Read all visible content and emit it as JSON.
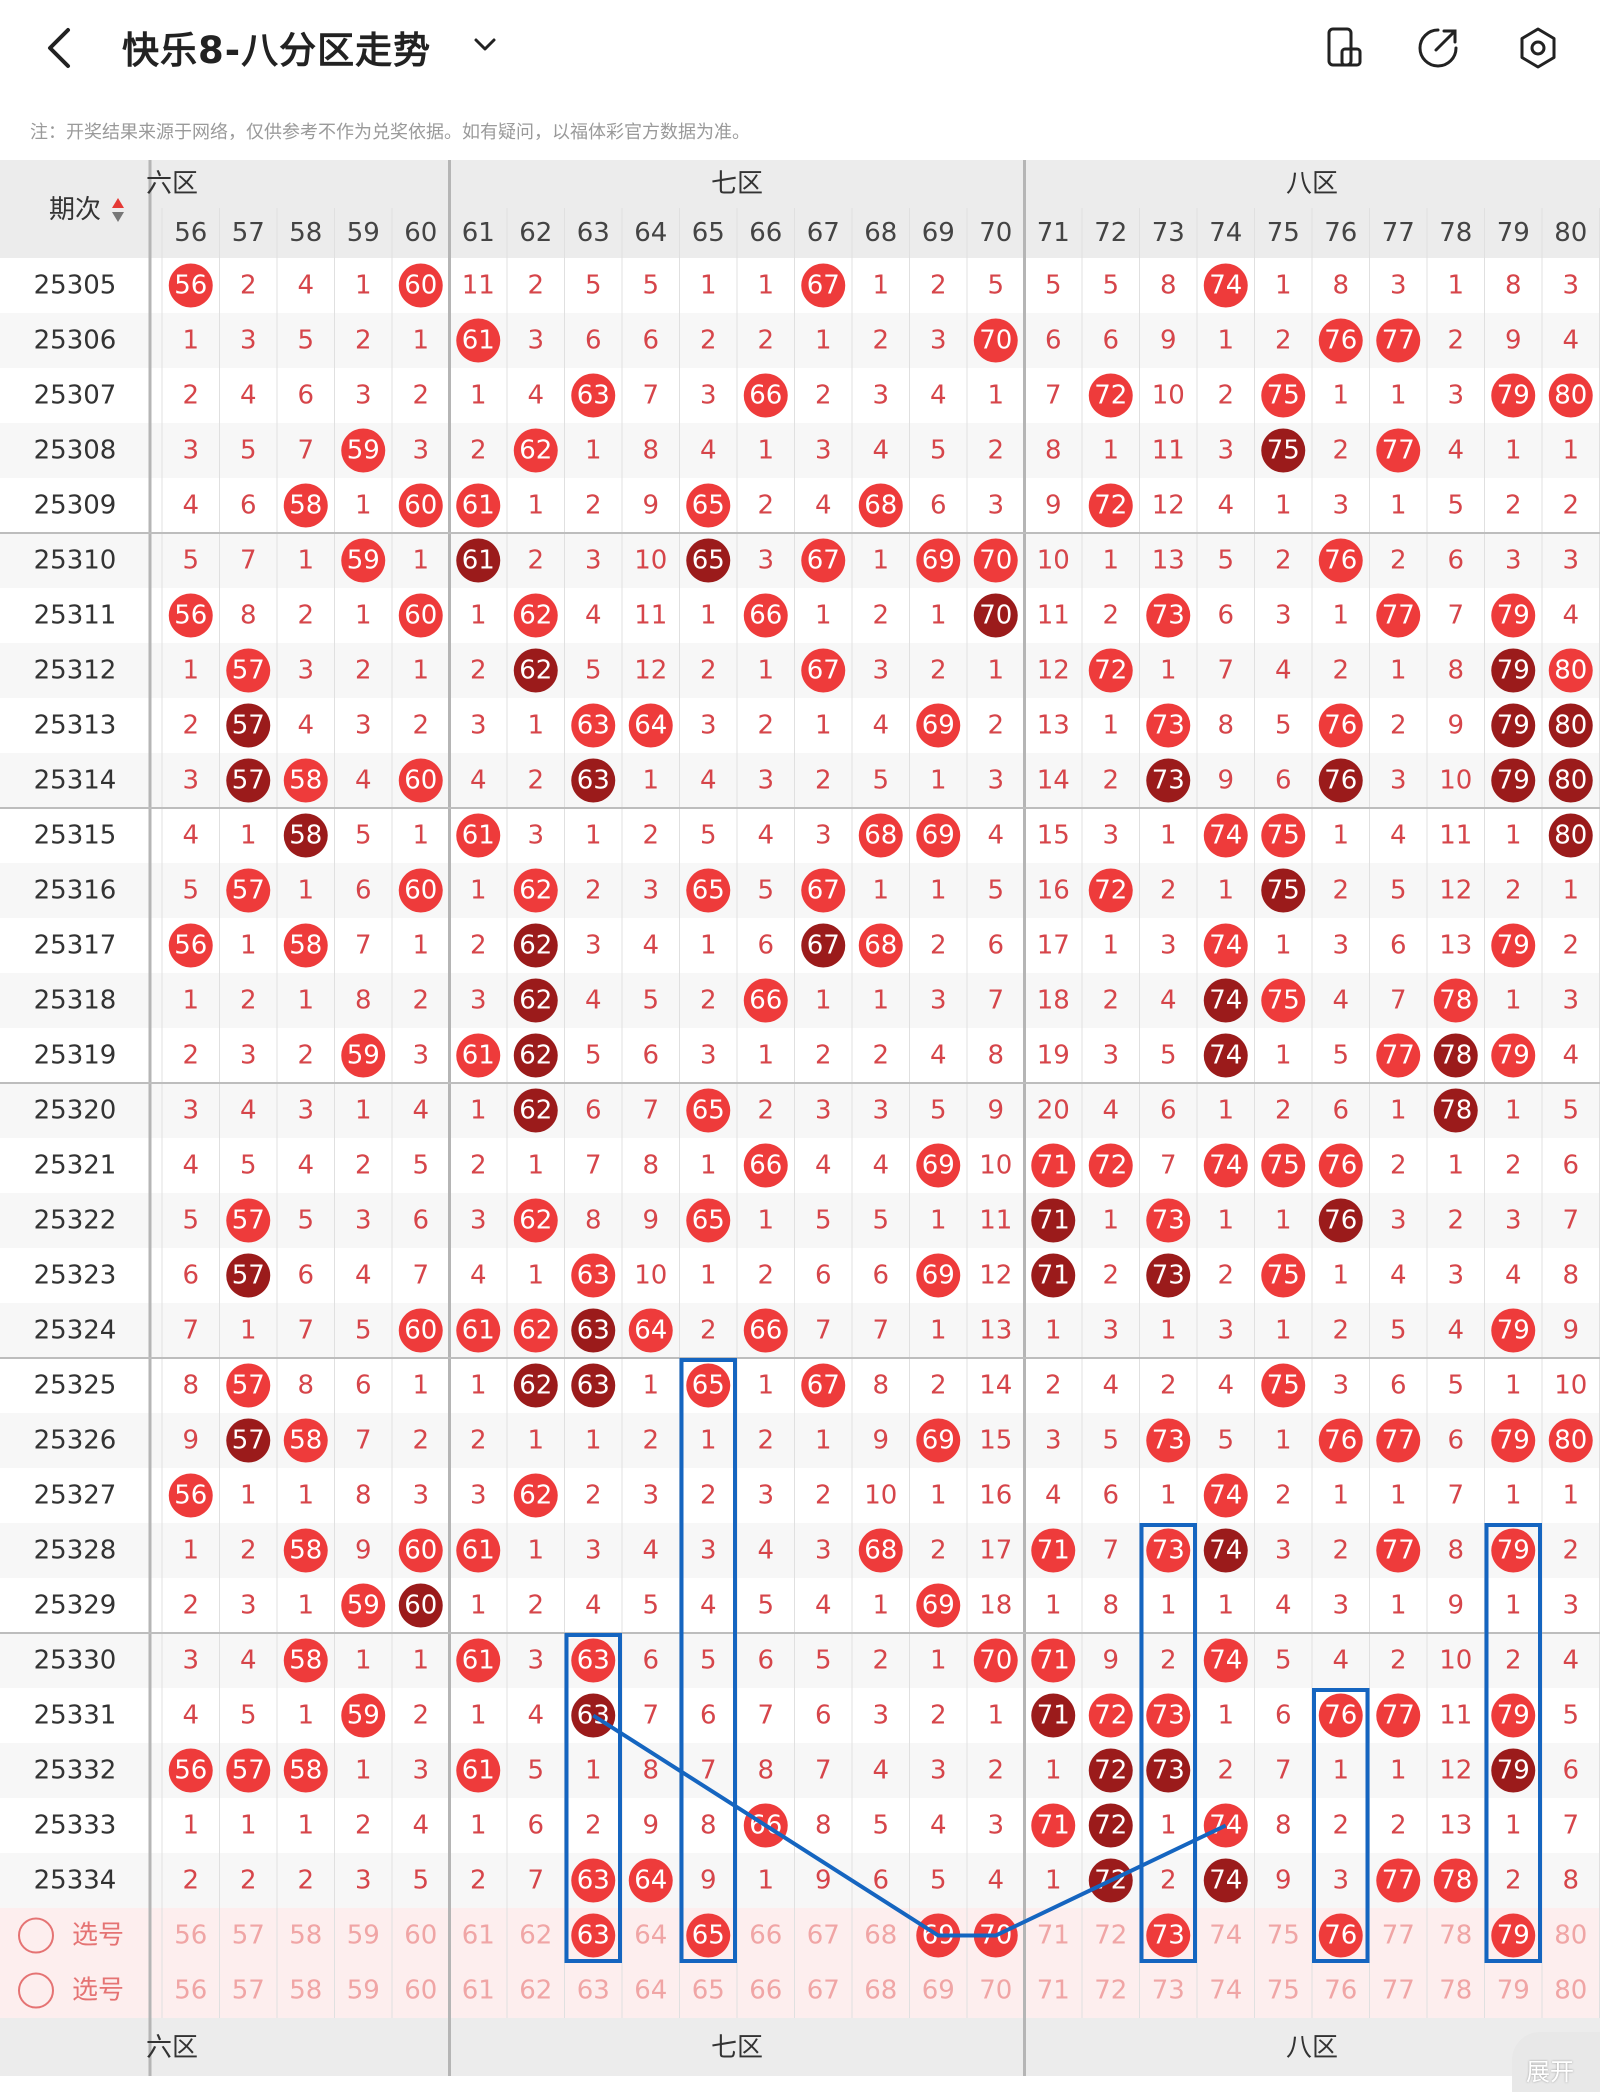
{
  "header": {
    "title": "快乐8-八分区走势",
    "back_icon": "chevron-left-icon",
    "dropdown_icon": "chevron-down-icon",
    "actions": [
      {
        "name": "layout-icon"
      },
      {
        "name": "share-icon"
      },
      {
        "name": "settings-icon"
      }
    ]
  },
  "notice": "注：开奖结果来源于网络，仅供参考不作为兑奖依据。如有疑问，以福体彩官方数据为准。",
  "table": {
    "issue_header": "期次",
    "zones": [
      {
        "label": "六区"
      },
      {
        "label": "七区"
      },
      {
        "label": "八区"
      }
    ],
    "columns": [
      56,
      57,
      58,
      59,
      60,
      61,
      62,
      63,
      64,
      65,
      66,
      67,
      68,
      69,
      70,
      71,
      72,
      73,
      74,
      75,
      76,
      77,
      78,
      79,
      80
    ],
    "rows": [
      {
        "issue": "25305",
        "cells": [
          "56",
          "2",
          "4",
          "1",
          "60",
          "11",
          "2",
          "5",
          "5",
          "1",
          "1",
          "67",
          "1",
          "2",
          "5",
          "5",
          "5",
          "8",
          "74",
          "1",
          "8",
          "3",
          "1",
          "8",
          "3"
        ]
      },
      {
        "issue": "25306",
        "cells": [
          "1",
          "3",
          "5",
          "2",
          "1",
          "61",
          "3",
          "6",
          "6",
          "2",
          "2",
          "1",
          "2",
          "3",
          "70",
          "6",
          "6",
          "9",
          "1",
          "2",
          "76",
          "77",
          "2",
          "9",
          "4"
        ]
      },
      {
        "issue": "25307",
        "cells": [
          "2",
          "4",
          "6",
          "3",
          "2",
          "1",
          "4",
          "63",
          "7",
          "3",
          "66",
          "2",
          "3",
          "4",
          "1",
          "7",
          "72",
          "10",
          "2",
          "75",
          "1",
          "1",
          "3",
          "79",
          "80"
        ]
      },
      {
        "issue": "25308",
        "cells": [
          "3",
          "5",
          "7",
          "59",
          "3",
          "2",
          "62",
          "1",
          "8",
          "4",
          "1",
          "3",
          "4",
          "5",
          "2",
          "8",
          "1",
          "11",
          "3",
          "75",
          "2",
          "77",
          "4",
          "1",
          "1"
        ]
      },
      {
        "issue": "25309",
        "cells": [
          "4",
          "6",
          "58",
          "1",
          "60",
          "61",
          "1",
          "2",
          "9",
          "65",
          "2",
          "4",
          "68",
          "6",
          "3",
          "9",
          "72",
          "12",
          "4",
          "1",
          "3",
          "1",
          "5",
          "2",
          "2"
        ]
      },
      {
        "issue": "25310",
        "cells": [
          "5",
          "7",
          "1",
          "59",
          "1",
          "61",
          "2",
          "3",
          "10",
          "65",
          "3",
          "67",
          "1",
          "69",
          "70",
          "10",
          "1",
          "13",
          "5",
          "2",
          "76",
          "2",
          "6",
          "3",
          "3"
        ]
      },
      {
        "issue": "25311",
        "cells": [
          "56",
          "8",
          "2",
          "1",
          "60",
          "1",
          "62",
          "4",
          "11",
          "1",
          "66",
          "1",
          "2",
          "1",
          "70",
          "11",
          "2",
          "73",
          "6",
          "3",
          "1",
          "77",
          "7",
          "79",
          "4"
        ]
      },
      {
        "issue": "25312",
        "cells": [
          "1",
          "57",
          "3",
          "2",
          "1",
          "2",
          "62",
          "5",
          "12",
          "2",
          "1",
          "67",
          "3",
          "2",
          "1",
          "12",
          "72",
          "1",
          "7",
          "4",
          "2",
          "1",
          "8",
          "79",
          "80"
        ]
      },
      {
        "issue": "25313",
        "cells": [
          "2",
          "57",
          "4",
          "3",
          "2",
          "3",
          "1",
          "63",
          "64",
          "3",
          "2",
          "1",
          "4",
          "69",
          "2",
          "13",
          "1",
          "73",
          "8",
          "5",
          "76",
          "2",
          "9",
          "79",
          "80"
        ]
      },
      {
        "issue": "25314",
        "cells": [
          "3",
          "57",
          "58",
          "4",
          "60",
          "4",
          "2",
          "63",
          "1",
          "4",
          "3",
          "2",
          "5",
          "1",
          "3",
          "14",
          "2",
          "73",
          "9",
          "6",
          "76",
          "3",
          "10",
          "79",
          "80"
        ]
      },
      {
        "issue": "25315",
        "cells": [
          "4",
          "1",
          "58",
          "5",
          "1",
          "61",
          "3",
          "1",
          "2",
          "5",
          "4",
          "3",
          "68",
          "69",
          "4",
          "15",
          "3",
          "1",
          "74",
          "75",
          "1",
          "4",
          "11",
          "1",
          "80"
        ]
      },
      {
        "issue": "25316",
        "cells": [
          "5",
          "57",
          "1",
          "6",
          "60",
          "1",
          "62",
          "2",
          "3",
          "65",
          "5",
          "67",
          "1",
          "1",
          "5",
          "16",
          "72",
          "2",
          "1",
          "75",
          "2",
          "5",
          "12",
          "2",
          "1"
        ]
      },
      {
        "issue": "25317",
        "cells": [
          "56",
          "1",
          "58",
          "7",
          "1",
          "2",
          "62",
          "3",
          "4",
          "1",
          "6",
          "67",
          "68",
          "2",
          "6",
          "17",
          "1",
          "3",
          "74",
          "1",
          "3",
          "6",
          "13",
          "79",
          "2"
        ]
      },
      {
        "issue": "25318",
        "cells": [
          "1",
          "2",
          "1",
          "8",
          "2",
          "3",
          "62",
          "4",
          "5",
          "2",
          "66",
          "1",
          "1",
          "3",
          "7",
          "18",
          "2",
          "4",
          "74",
          "75",
          "4",
          "7",
          "78",
          "1",
          "3"
        ]
      },
      {
        "issue": "25319",
        "cells": [
          "2",
          "3",
          "2",
          "59",
          "3",
          "61",
          "62",
          "5",
          "6",
          "3",
          "1",
          "2",
          "2",
          "4",
          "8",
          "19",
          "3",
          "5",
          "74",
          "1",
          "5",
          "77",
          "78",
          "79",
          "4"
        ]
      },
      {
        "issue": "25320",
        "cells": [
          "3",
          "4",
          "3",
          "1",
          "4",
          "1",
          "62",
          "6",
          "7",
          "65",
          "2",
          "3",
          "3",
          "5",
          "9",
          "20",
          "4",
          "6",
          "1",
          "2",
          "6",
          "1",
          "78",
          "1",
          "5"
        ]
      },
      {
        "issue": "25321",
        "cells": [
          "4",
          "5",
          "4",
          "2",
          "5",
          "2",
          "1",
          "7",
          "8",
          "1",
          "66",
          "4",
          "4",
          "69",
          "10",
          "71",
          "72",
          "7",
          "74",
          "75",
          "76",
          "2",
          "1",
          "2",
          "6"
        ]
      },
      {
        "issue": "25322",
        "cells": [
          "5",
          "57",
          "5",
          "3",
          "6",
          "3",
          "62",
          "8",
          "9",
          "65",
          "1",
          "5",
          "5",
          "1",
          "11",
          "71",
          "1",
          "73",
          "1",
          "1",
          "76",
          "3",
          "2",
          "3",
          "7"
        ]
      },
      {
        "issue": "25323",
        "cells": [
          "6",
          "57",
          "6",
          "4",
          "7",
          "4",
          "1",
          "63",
          "10",
          "1",
          "2",
          "6",
          "6",
          "69",
          "12",
          "71",
          "2",
          "73",
          "2",
          "75",
          "1",
          "4",
          "3",
          "4",
          "8"
        ]
      },
      {
        "issue": "25324",
        "cells": [
          "7",
          "1",
          "7",
          "5",
          "60",
          "61",
          "62",
          "63",
          "64",
          "2",
          "66",
          "7",
          "7",
          "1",
          "13",
          "1",
          "3",
          "1",
          "3",
          "1",
          "2",
          "5",
          "4",
          "79",
          "9"
        ]
      },
      {
        "issue": "25325",
        "cells": [
          "8",
          "57",
          "8",
          "6",
          "1",
          "1",
          "62",
          "63",
          "1",
          "65",
          "1",
          "67",
          "8",
          "2",
          "14",
          "2",
          "4",
          "2",
          "4",
          "75",
          "3",
          "6",
          "5",
          "1",
          "10"
        ]
      },
      {
        "issue": "25326",
        "cells": [
          "9",
          "57",
          "58",
          "7",
          "2",
          "2",
          "1",
          "1",
          "2",
          "1",
          "2",
          "1",
          "9",
          "69",
          "15",
          "3",
          "5",
          "73",
          "5",
          "1",
          "76",
          "77",
          "6",
          "79",
          "80"
        ]
      },
      {
        "issue": "25327",
        "cells": [
          "56",
          "1",
          "1",
          "8",
          "3",
          "3",
          "62",
          "2",
          "3",
          "2",
          "3",
          "2",
          "10",
          "1",
          "16",
          "4",
          "6",
          "1",
          "74",
          "2",
          "1",
          "1",
          "7",
          "1",
          "1"
        ]
      },
      {
        "issue": "25328",
        "cells": [
          "1",
          "2",
          "58",
          "9",
          "60",
          "61",
          "1",
          "3",
          "4",
          "3",
          "4",
          "3",
          "68",
          "2",
          "17",
          "71",
          "7",
          "73",
          "74",
          "3",
          "2",
          "77",
          "8",
          "79",
          "2"
        ]
      },
      {
        "issue": "25329",
        "cells": [
          "2",
          "3",
          "1",
          "59",
          "60",
          "1",
          "2",
          "4",
          "5",
          "4",
          "5",
          "4",
          "1",
          "69",
          "18",
          "1",
          "8",
          "1",
          "1",
          "4",
          "3",
          "1",
          "9",
          "1",
          "3"
        ]
      },
      {
        "issue": "25330",
        "cells": [
          "3",
          "4",
          "58",
          "1",
          "1",
          "61",
          "3",
          "63",
          "6",
          "5",
          "6",
          "5",
          "2",
          "1",
          "70",
          "71",
          "9",
          "2",
          "74",
          "5",
          "4",
          "2",
          "10",
          "2",
          "4"
        ]
      },
      {
        "issue": "25331",
        "cells": [
          "4",
          "5",
          "1",
          "59",
          "2",
          "1",
          "4",
          "63",
          "7",
          "6",
          "7",
          "6",
          "3",
          "2",
          "1",
          "71",
          "72",
          "73",
          "1",
          "6",
          "76",
          "77",
          "11",
          "79",
          "5"
        ]
      },
      {
        "issue": "25332",
        "cells": [
          "56",
          "57",
          "58",
          "1",
          "3",
          "61",
          "5",
          "1",
          "8",
          "7",
          "8",
          "7",
          "4",
          "3",
          "2",
          "1",
          "72",
          "73",
          "2",
          "7",
          "1",
          "1",
          "12",
          "79",
          "6"
        ]
      },
      {
        "issue": "25333",
        "cells": [
          "1",
          "1",
          "1",
          "2",
          "4",
          "1",
          "6",
          "2",
          "9",
          "8",
          "66",
          "8",
          "5",
          "4",
          "3",
          "71",
          "72",
          "1",
          "74",
          "8",
          "2",
          "2",
          "13",
          "1",
          "7"
        ]
      },
      {
        "issue": "25334",
        "cells": [
          "2",
          "2",
          "2",
          "3",
          "5",
          "2",
          "7",
          "63",
          "64",
          "9",
          "1",
          "9",
          "6",
          "5",
          "4",
          "1",
          "72",
          "2",
          "74",
          "9",
          "3",
          "77",
          "78",
          "2",
          "8"
        ]
      }
    ],
    "picker_rows": [
      {
        "label": "选号",
        "selected": [
          63,
          65,
          69,
          70,
          73,
          76,
          79
        ]
      },
      {
        "label": "选号",
        "selected": []
      }
    ],
    "colors": {
      "hit": "#ee3b3b",
      "hot": "#9b1b1b",
      "miss_text": "#d6454a",
      "issue_text": "#333333",
      "header_bg": "#ececec",
      "box": "#1565c0"
    }
  },
  "expand_label": "展开"
}
